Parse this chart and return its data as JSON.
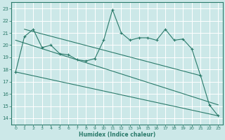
{
  "xlabel": "Humidex (Indice chaleur)",
  "xlim": [
    -0.5,
    23.5
  ],
  "ylim": [
    13.5,
    23.5
  ],
  "yticks": [
    14,
    15,
    16,
    17,
    18,
    19,
    20,
    21,
    22,
    23
  ],
  "xticks": [
    0,
    1,
    2,
    3,
    4,
    5,
    6,
    7,
    8,
    9,
    10,
    11,
    12,
    13,
    14,
    15,
    16,
    17,
    18,
    19,
    20,
    21,
    22,
    23
  ],
  "bg_color": "#cce8e8",
  "grid_color": "#ffffff",
  "line_color": "#2a7a6a",
  "series1_x": [
    0,
    1,
    2,
    3,
    4,
    5,
    6,
    7,
    8,
    9,
    10,
    11,
    12,
    13,
    14,
    15,
    16,
    17,
    18,
    19,
    20,
    21,
    22,
    23
  ],
  "series1_y": [
    17.8,
    20.7,
    21.3,
    19.8,
    20.0,
    19.3,
    19.2,
    18.8,
    18.7,
    18.9,
    20.4,
    22.9,
    21.0,
    20.4,
    20.6,
    20.6,
    20.4,
    21.3,
    20.4,
    20.5,
    19.7,
    17.5,
    15.1,
    14.2
  ],
  "line1_x": [
    0,
    23
  ],
  "line1_y": [
    20.7,
    17.5
  ],
  "line2_x": [
    0,
    23
  ],
  "line2_y": [
    17.8,
    14.2
  ],
  "line3_x": [
    0,
    23
  ],
  "line3_y": [
    19.5,
    14.2
  ]
}
